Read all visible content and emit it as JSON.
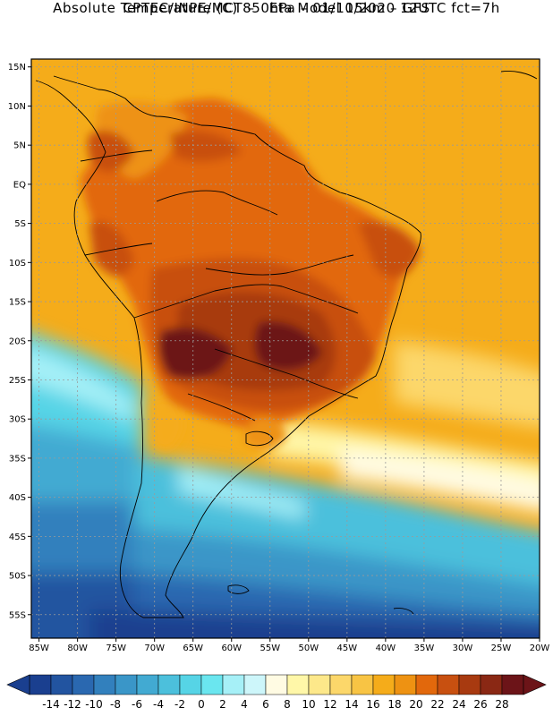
{
  "header": {
    "line1": "CPTEC/INPE/MCT –   Eta Model 15km – GFS",
    "line2": "Absolute Temperature (C) 850hPa – 01/10/2020 12UTC fct=7h"
  },
  "map": {
    "lat_labels": [
      "15N",
      "10N",
      "5N",
      "EQ",
      "5S",
      "10S",
      "15S",
      "20S",
      "25S",
      "30S",
      "35S",
      "40S",
      "45S",
      "50S",
      "55S"
    ],
    "lon_labels": [
      "85W",
      "80W",
      "75W",
      "70W",
      "65W",
      "60W",
      "55W",
      "50W",
      "45W",
      "40W",
      "35W",
      "30W",
      "25W",
      "20W"
    ],
    "lat_range": [
      -58,
      16
    ],
    "lon_range": [
      -86,
      -20
    ]
  },
  "colorbar": {
    "ticks": [
      "-14",
      "-12",
      "-10",
      "-8",
      "-6",
      "-4",
      "-2",
      "0",
      "2",
      "4",
      "6",
      "8",
      "10",
      "12",
      "14",
      "16",
      "18",
      "20",
      "22",
      "24",
      "26",
      "28"
    ],
    "colors": [
      "#1a3f8f",
      "#2254a0",
      "#2a68b0",
      "#3280bd",
      "#3a96c8",
      "#42aad2",
      "#4cc0dc",
      "#56d4e6",
      "#6ae6ef",
      "#a6f0f7",
      "#cdf6fa",
      "#fffbe3",
      "#fff7a8",
      "#fde88a",
      "#fcd76a",
      "#f8c444",
      "#f5ac1a",
      "#ee9212",
      "#e2680c",
      "#c85010",
      "#a83a10",
      "#8a2814",
      "#6c1418"
    ]
  },
  "icons": [
    "left-arrow-icon",
    "right-arrow-icon"
  ]
}
